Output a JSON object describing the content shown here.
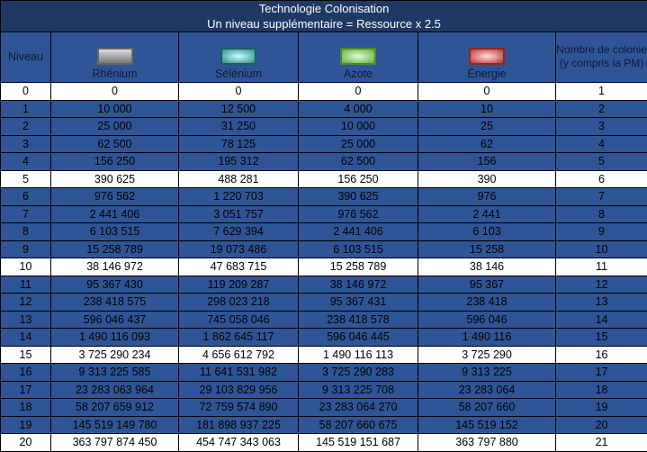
{
  "title": "Technologie Colonisation",
  "subtitle": "Un niveau supplémentaire = Ressource x 2.5",
  "headers": {
    "niveau": "Niveau",
    "rhenium": "Rhénium",
    "selenium": "Sélénium",
    "azote": "Azote",
    "energie": "Énergie",
    "nombre": "Nombre de colonie (y compris la PM)"
  },
  "icons": {
    "rhenium": "rhenium-resource-icon",
    "selenium": "selenium-resource-icon",
    "azote": "azote-resource-icon",
    "energie": "energie-resource-icon"
  },
  "colors": {
    "title_bg": "#1f3864",
    "row_bg": "#2f5597",
    "highlight_row_bg": "#ffffff"
  },
  "rows": [
    [
      "0",
      "0",
      "0",
      "0",
      "0",
      "1"
    ],
    [
      "1",
      "10 000",
      "12 500",
      "4 000",
      "10",
      "2"
    ],
    [
      "2",
      "25 000",
      "31 250",
      "10 000",
      "25",
      "3"
    ],
    [
      "3",
      "62 500",
      "78 125",
      "25 000",
      "62",
      "4"
    ],
    [
      "4",
      "156 250",
      "195 312",
      "62 500",
      "156",
      "5"
    ],
    [
      "5",
      "390 625",
      "488 281",
      "156 250",
      "390",
      "6"
    ],
    [
      "6",
      "976 562",
      "1 220 703",
      "390 625",
      "976",
      "7"
    ],
    [
      "7",
      "2 441 406",
      "3 051 757",
      "976 562",
      "2 441",
      "8"
    ],
    [
      "8",
      "6 103 515",
      "7 629 394",
      "2 441 406",
      "6 103",
      "9"
    ],
    [
      "9",
      "15 258 789",
      "19 073 486",
      "6 103 515",
      "15 258",
      "10"
    ],
    [
      "10",
      "38 146 972",
      "47 683 715",
      "15 258 789",
      "38 146",
      "11"
    ],
    [
      "11",
      "95 367 430",
      "119 209 287",
      "38 146 972",
      "95 367",
      "12"
    ],
    [
      "12",
      "238 418 575",
      "298 023 218",
      "95 367 431",
      "238 418",
      "13"
    ],
    [
      "13",
      "596 046 437",
      "745 058 046",
      "238 418 578",
      "596 046",
      "14"
    ],
    [
      "14",
      "1 490 116 093",
      "1 862 645 117",
      "596 046 445",
      "1 490 116",
      "15"
    ],
    [
      "15",
      "3 725 290 234",
      "4 656 612 792",
      "1 490 116 113",
      "3 725 290",
      "16"
    ],
    [
      "16",
      "9 313 225 585",
      "11 641 531 982",
      "3 725 290 283",
      "9 313 225",
      "17"
    ],
    [
      "17",
      "23 283 063 964",
      "29 103 829 956",
      "9 313 225 708",
      "23 283 064",
      "18"
    ],
    [
      "18",
      "58 207 659 912",
      "72 759 574 890",
      "23 283 064 270",
      "58 207 660",
      "19"
    ],
    [
      "19",
      "145 519 149 780",
      "181 898 937 225",
      "58 207 660 675",
      "145 519 152",
      "20"
    ],
    [
      "20",
      "363 797 874 450",
      "454 747 343 063",
      "145 519 151 687",
      "363 797 880",
      "21"
    ]
  ]
}
